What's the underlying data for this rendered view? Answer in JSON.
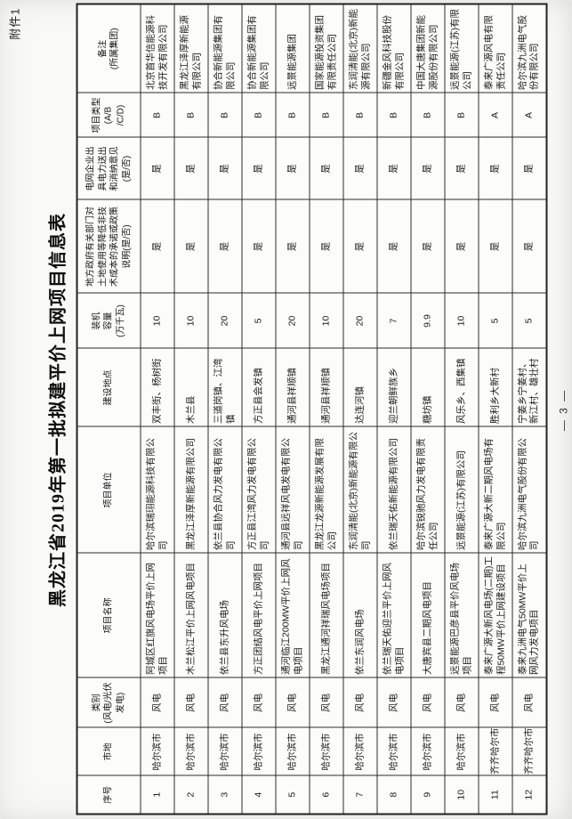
{
  "document": {
    "attachment_label": "附件1",
    "title": "黑龙江省2019年第一批拟建平价上网项目信息表",
    "page_number": "— 3 —"
  },
  "table": {
    "columns": [
      {
        "key": "index",
        "label": "序号"
      },
      {
        "key": "city",
        "label": "市地"
      },
      {
        "key": "category",
        "label": "类别\n(风电/光伏\n发电)"
      },
      {
        "key": "project",
        "label": "项目名称"
      },
      {
        "key": "company",
        "label": "项目单位"
      },
      {
        "key": "site",
        "label": "建设地点"
      },
      {
        "key": "capacity",
        "label": "装机\n容量\n(万千瓦)"
      },
      {
        "key": "gov_ok",
        "label": "地方政府有关部门对\n土地使用等降低非技\n术成本的承诺或政策\n说明(是/否)"
      },
      {
        "key": "grid_ok",
        "label": "电网企业出\n具电力送出\n和消纳意见\n(是/否)"
      },
      {
        "key": "type",
        "label": "项目类型\n(A/B\n/C/D)"
      },
      {
        "key": "remark",
        "label": "备注\n(所属集团)"
      }
    ],
    "rows": [
      [
        "1",
        "哈尔滨市",
        "风电",
        "阿城区红旗风电场平价上网项目",
        "哈尔滨瑞珝能源科技有限公司",
        "双丰街、杨树街",
        "10",
        "是",
        "是",
        "B",
        "北京首华信能源科技开发有限公司"
      ],
      [
        "2",
        "哈尔滨市",
        "风电",
        "木兰松江平价上网风电项目",
        "黑龙江泽厚新能源有限公司",
        "木兰县",
        "10",
        "是",
        "是",
        "B",
        "黑龙江泽厚新能源有限公司"
      ],
      [
        "3",
        "哈尔滨市",
        "风电",
        "依兰县东升风电场",
        "依兰县协合风力发电有限公司",
        "三道岗镇、江湾镇",
        "20",
        "是",
        "是",
        "B",
        "协合新能源集团有限公司"
      ],
      [
        "4",
        "哈尔滨市",
        "风电",
        "方正团结风电平价上网项目",
        "方正县江湾风力发电有限公司",
        "方正县会发镇",
        "5",
        "是",
        "是",
        "B",
        "协合新能源集团有限公司"
      ],
      [
        "5",
        "哈尔滨市",
        "风电",
        "通河临江200MW平价上网风电项目",
        "通河县远祥风电发电有限公司",
        "通河县祥顺镇",
        "20",
        "是",
        "是",
        "B",
        "远景能源集团"
      ],
      [
        "6",
        "哈尔滨市",
        "风电",
        "黑龙江通河祥瑞风电场项目",
        "黑龙江龙源新能源发展有限公司",
        "通河县祥顺镇",
        "10",
        "是",
        "是",
        "B",
        "国家能源投资集团有限责任公司"
      ],
      [
        "7",
        "哈尔滨市",
        "风电",
        "依兰东润风电场",
        "东润清能(北京)新能源有限公司",
        "达连河镇",
        "20",
        "是",
        "是",
        "B",
        "东润清能(北京)新能源有限公司"
      ],
      [
        "8",
        "哈尔滨市",
        "风电",
        "依兰瑞天佑迎兰平价上网风电项目",
        "依兰瑞天佑新能源有限公司",
        "迎兰朝鲜族乡",
        "7",
        "是",
        "是",
        "B",
        "新疆金风科技股份有限公司"
      ],
      [
        "9",
        "哈尔滨市",
        "风电",
        "大唐宾县二期风电项目",
        "哈尔滨锐驰风力发电有限责任公司",
        "糖坊镇",
        "9.9",
        "是",
        "是",
        "B",
        "中国大唐集团新能源股份有限公司"
      ],
      [
        "10",
        "哈尔滨市",
        "风电",
        "远景能源巴彦县平价风电场项目",
        "远景能源(江苏)有限公司",
        "风乐乡、西集镇",
        "10",
        "是",
        "是",
        "B",
        "远景能源(江苏)有限公司"
      ],
      [
        "11",
        "齐齐哈尔市",
        "风电",
        "泰来广源大新风电场(二期)工程50MW平价上网建设项目",
        "泰来广源大新二期风电场有限公司",
        "胜利乡大新村",
        "5",
        "是",
        "是",
        "A",
        "泰来广源风电有限责任公司"
      ],
      [
        "12",
        "齐齐哈尔市",
        "风电",
        "泰来九洲电气50MW平价上网风力发电项目",
        "哈尔滨九洲电气股份有限公司",
        "宁姜乡宁姜村、新江村、雄壮村",
        "5",
        "是",
        "是",
        "A",
        "哈尔滨九洲电气股份有限公司"
      ]
    ]
  }
}
